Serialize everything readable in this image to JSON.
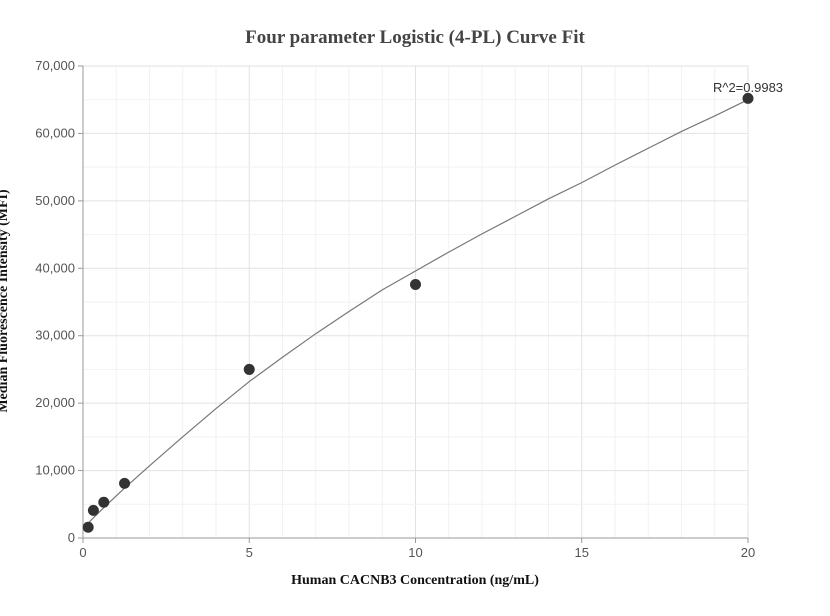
{
  "chart_data": {
    "type": "scatter",
    "title": "Four parameter Logistic (4-PL) Curve Fit",
    "xlabel": "Human CACNB3 Concentration (ng/mL)",
    "ylabel": "Median Fluorescence Intensity (MFI)",
    "xlim": [
      0,
      20
    ],
    "ylim": [
      0,
      70000
    ],
    "x_ticks": [
      0,
      5,
      10,
      15,
      20
    ],
    "y_ticks": [
      0,
      10000,
      20000,
      30000,
      40000,
      50000,
      60000,
      70000
    ],
    "x_tick_labels": [
      "0",
      "5",
      "10",
      "15",
      "20"
    ],
    "y_tick_labels": [
      "0",
      "10,000",
      "20,000",
      "30,000",
      "40,000",
      "50,000",
      "60,000",
      "70,000"
    ],
    "grid": true,
    "points": [
      {
        "x": 0.156,
        "y": 1600
      },
      {
        "x": 0.3125,
        "y": 4100
      },
      {
        "x": 0.625,
        "y": 5300
      },
      {
        "x": 1.25,
        "y": 8100
      },
      {
        "x": 5,
        "y": 25000
      },
      {
        "x": 10,
        "y": 37600
      },
      {
        "x": 20,
        "y": 65200
      }
    ],
    "fit_curve": {
      "x": [
        0,
        0.156,
        0.3125,
        0.625,
        1.25,
        2,
        3,
        4,
        5,
        6,
        7,
        8,
        9,
        10,
        11,
        12,
        13,
        14,
        15,
        16,
        17,
        18,
        19,
        20
      ],
      "y": [
        1500,
        2200,
        3000,
        4500,
        7400,
        10700,
        15000,
        19200,
        23200,
        26800,
        30300,
        33600,
        36800,
        39600,
        42400,
        45100,
        47700,
        50300,
        52700,
        55300,
        57800,
        60300,
        62600,
        65000
      ]
    },
    "annotation": "R^2=0.9983",
    "colors": {
      "point": "#333333",
      "curve": "#777777",
      "grid": "#e6e6e6",
      "axis": "#999999"
    }
  }
}
